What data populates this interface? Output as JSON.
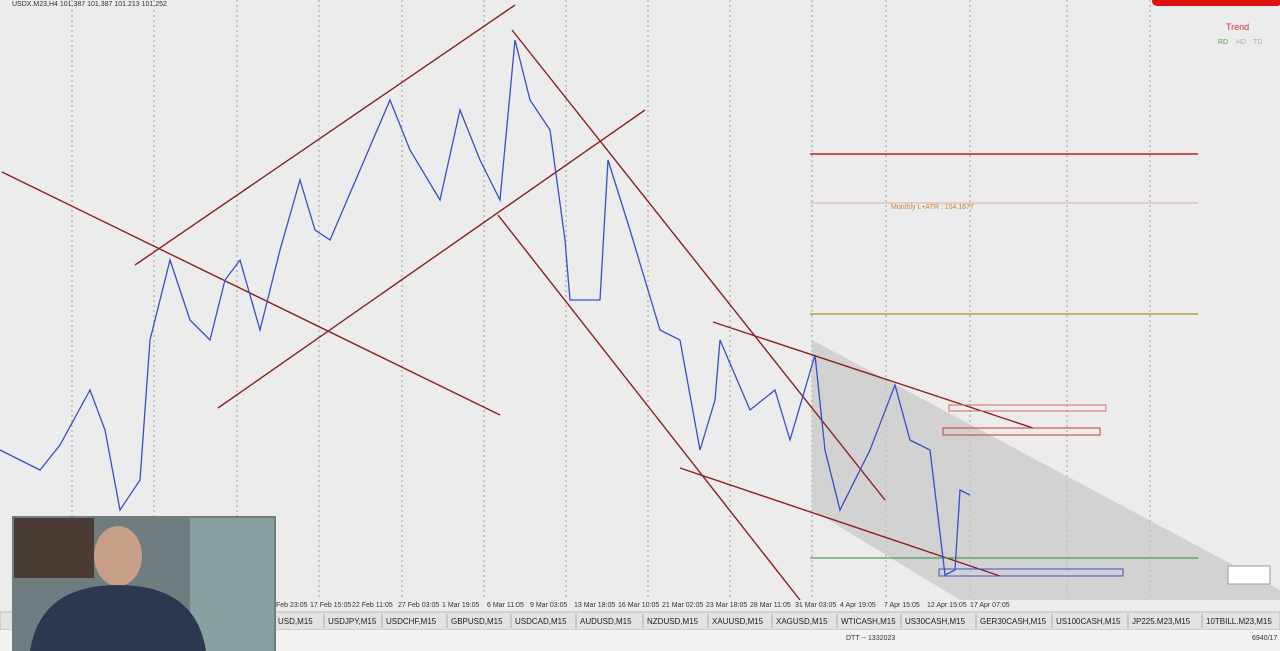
{
  "header": {
    "symbol": "USDX.M23,H4  101.387 101.387 101.213 101.252"
  },
  "indicator": {
    "title": "Trend",
    "modes": [
      "RD",
      "HD",
      "TD"
    ]
  },
  "annotation": "Monthly L+ATR : 104.1677",
  "dates": [
    "Feb 23:05",
    "17 Feb 15:05",
    "22 Feb 11:05",
    "27 Feb 03:05",
    "1 Mar 19:05",
    "6 Mar 11:05",
    "9 Mar 03:05",
    "13 Mar 18:05",
    "16 Mar 10:05",
    "21 Mar 02:05",
    "23 Mar 18:05",
    "28 Mar 11:05",
    "31 Mar 03:05",
    "4 Apr 19:05",
    "7 Apr 15:05",
    "12 Apr 15:05",
    "17 Apr 07:05"
  ],
  "tabs": [
    "USD,M15",
    "USDJPY,M15",
    "USDCHF,M15",
    "GBPUSD,M15",
    "USDCAD,M15",
    "AUDUSD,M15",
    "NZDUSD,M15",
    "XAUUSD,M15",
    "XAGUSD,M15",
    "WTICASH,M15",
    "US30CASH,M15",
    "GER30CASH,M15",
    "US100CASH,M15",
    "JP225.M23,M15",
    "10TBILL.M23,M15"
  ],
  "status": {
    "profile": "DTT -- 1332023",
    "traffic": "6940/17"
  }
}
